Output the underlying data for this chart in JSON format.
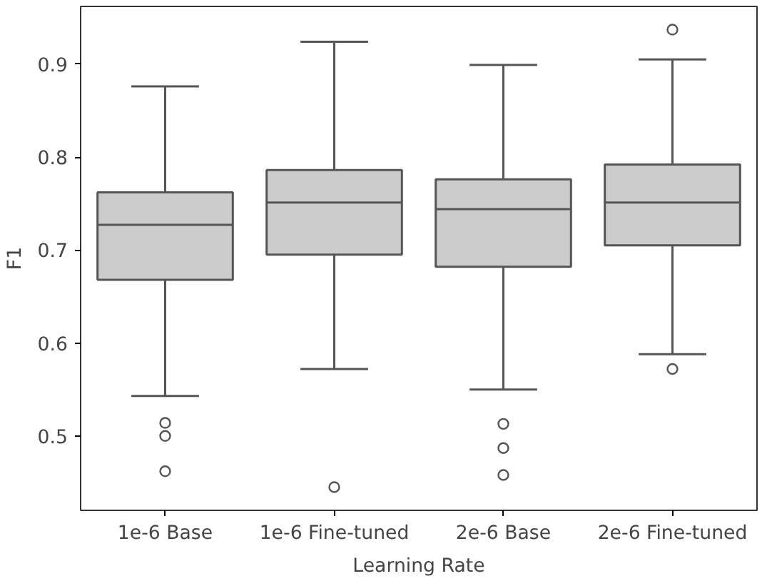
{
  "chart_data": {
    "type": "box",
    "xlabel": "Learning Rate",
    "ylabel": "F1",
    "categories": [
      "1e-6 Base",
      "1e-6 Fine-tuned",
      "2e-6 Base",
      "2e-6 Fine-tuned"
    ],
    "color": "#cccccc",
    "boxes": [
      {
        "low": 0.543,
        "q1": 0.668,
        "median": 0.727,
        "q3": 0.762,
        "high": 0.876,
        "outliers": [
          0.514,
          0.5,
          0.462
        ]
      },
      {
        "low": 0.572,
        "q1": 0.695,
        "median": 0.751,
        "q3": 0.786,
        "high": 0.924,
        "outliers": [
          0.445
        ]
      },
      {
        "low": 0.55,
        "q1": 0.682,
        "median": 0.744,
        "q3": 0.776,
        "high": 0.899,
        "outliers": [
          0.513,
          0.487,
          0.458
        ]
      },
      {
        "low": 0.588,
        "q1": 0.705,
        "median": 0.751,
        "q3": 0.792,
        "high": 0.905,
        "outliers": [
          0.937,
          0.572
        ]
      }
    ],
    "ylim": [
      0.42,
      0.962
    ],
    "yticks": [
      0.5,
      0.6,
      0.7,
      0.8,
      0.9
    ],
    "grid": false
  }
}
